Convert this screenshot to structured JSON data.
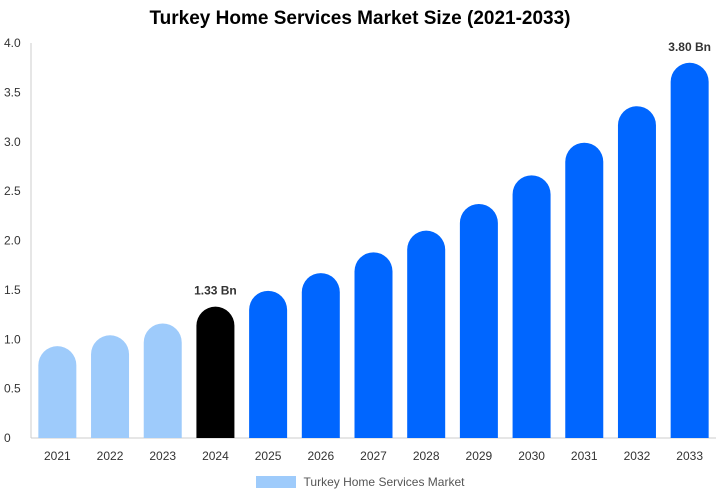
{
  "chart_data": {
    "type": "bar",
    "title": "Turkey Home Services Market Size (2021-2033)",
    "categories": [
      "2021",
      "2022",
      "2023",
      "2024",
      "2025",
      "2026",
      "2027",
      "2028",
      "2029",
      "2030",
      "2031",
      "2032",
      "2033"
    ],
    "series": [
      {
        "name": "Turkey Home Services Market",
        "values": [
          0.93,
          1.04,
          1.16,
          1.33,
          1.49,
          1.67,
          1.88,
          2.1,
          2.37,
          2.66,
          2.99,
          3.36,
          3.8
        ]
      }
    ],
    "bar_colors": [
      "#9ecbfb",
      "#9ecbfb",
      "#9ecbfb",
      "#000000",
      "#0066ff",
      "#0066ff",
      "#0066ff",
      "#0066ff",
      "#0066ff",
      "#0066ff",
      "#0066ff",
      "#0066ff",
      "#0066ff"
    ],
    "data_labels": [
      {
        "category": "2024",
        "text": "1.33 Bn"
      },
      {
        "category": "2033",
        "text": "3.80 Bn"
      }
    ],
    "y_ticks": [
      "0",
      "0.5",
      "1.0",
      "1.5",
      "2.0",
      "2.5",
      "3.0",
      "3.5",
      "4.0"
    ],
    "ylim": [
      0,
      4.0
    ],
    "grid": false,
    "legend": {
      "position": "bottom",
      "color": "#9ecbfb"
    }
  }
}
